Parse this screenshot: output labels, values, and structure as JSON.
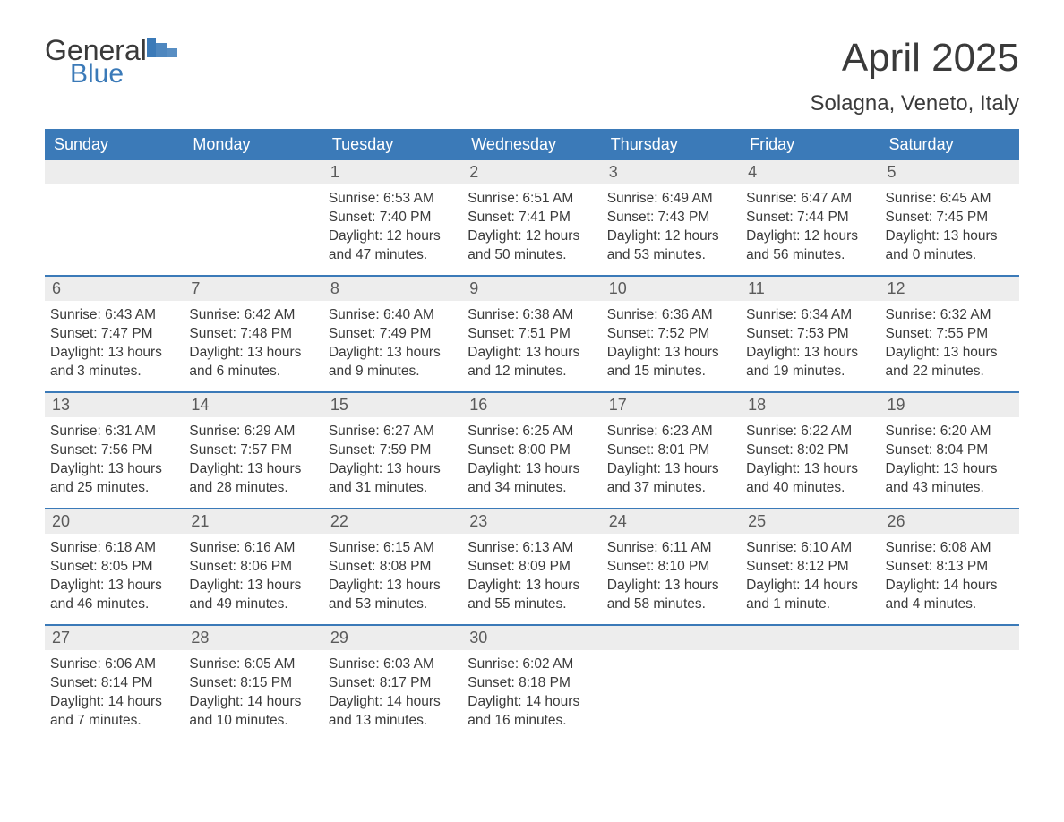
{
  "brand": {
    "word1": "General",
    "word2": "Blue"
  },
  "colors": {
    "brand_blue": "#3b7ab8",
    "header_bg": "#3b7ab8",
    "header_text": "#ffffff",
    "daynum_bg": "#ededed",
    "text": "#3a3a3a",
    "page_bg": "#ffffff"
  },
  "title": "April 2025",
  "location": "Solagna, Veneto, Italy",
  "dow": [
    "Sunday",
    "Monday",
    "Tuesday",
    "Wednesday",
    "Thursday",
    "Friday",
    "Saturday"
  ],
  "weeks": [
    [
      {
        "n": "",
        "sr": "",
        "ss": "",
        "dl": ""
      },
      {
        "n": "",
        "sr": "",
        "ss": "",
        "dl": ""
      },
      {
        "n": "1",
        "sr": "Sunrise: 6:53 AM",
        "ss": "Sunset: 7:40 PM",
        "dl": "Daylight: 12 hours and 47 minutes."
      },
      {
        "n": "2",
        "sr": "Sunrise: 6:51 AM",
        "ss": "Sunset: 7:41 PM",
        "dl": "Daylight: 12 hours and 50 minutes."
      },
      {
        "n": "3",
        "sr": "Sunrise: 6:49 AM",
        "ss": "Sunset: 7:43 PM",
        "dl": "Daylight: 12 hours and 53 minutes."
      },
      {
        "n": "4",
        "sr": "Sunrise: 6:47 AM",
        "ss": "Sunset: 7:44 PM",
        "dl": "Daylight: 12 hours and 56 minutes."
      },
      {
        "n": "5",
        "sr": "Sunrise: 6:45 AM",
        "ss": "Sunset: 7:45 PM",
        "dl": "Daylight: 13 hours and 0 minutes."
      }
    ],
    [
      {
        "n": "6",
        "sr": "Sunrise: 6:43 AM",
        "ss": "Sunset: 7:47 PM",
        "dl": "Daylight: 13 hours and 3 minutes."
      },
      {
        "n": "7",
        "sr": "Sunrise: 6:42 AM",
        "ss": "Sunset: 7:48 PM",
        "dl": "Daylight: 13 hours and 6 minutes."
      },
      {
        "n": "8",
        "sr": "Sunrise: 6:40 AM",
        "ss": "Sunset: 7:49 PM",
        "dl": "Daylight: 13 hours and 9 minutes."
      },
      {
        "n": "9",
        "sr": "Sunrise: 6:38 AM",
        "ss": "Sunset: 7:51 PM",
        "dl": "Daylight: 13 hours and 12 minutes."
      },
      {
        "n": "10",
        "sr": "Sunrise: 6:36 AM",
        "ss": "Sunset: 7:52 PM",
        "dl": "Daylight: 13 hours and 15 minutes."
      },
      {
        "n": "11",
        "sr": "Sunrise: 6:34 AM",
        "ss": "Sunset: 7:53 PM",
        "dl": "Daylight: 13 hours and 19 minutes."
      },
      {
        "n": "12",
        "sr": "Sunrise: 6:32 AM",
        "ss": "Sunset: 7:55 PM",
        "dl": "Daylight: 13 hours and 22 minutes."
      }
    ],
    [
      {
        "n": "13",
        "sr": "Sunrise: 6:31 AM",
        "ss": "Sunset: 7:56 PM",
        "dl": "Daylight: 13 hours and 25 minutes."
      },
      {
        "n": "14",
        "sr": "Sunrise: 6:29 AM",
        "ss": "Sunset: 7:57 PM",
        "dl": "Daylight: 13 hours and 28 minutes."
      },
      {
        "n": "15",
        "sr": "Sunrise: 6:27 AM",
        "ss": "Sunset: 7:59 PM",
        "dl": "Daylight: 13 hours and 31 minutes."
      },
      {
        "n": "16",
        "sr": "Sunrise: 6:25 AM",
        "ss": "Sunset: 8:00 PM",
        "dl": "Daylight: 13 hours and 34 minutes."
      },
      {
        "n": "17",
        "sr": "Sunrise: 6:23 AM",
        "ss": "Sunset: 8:01 PM",
        "dl": "Daylight: 13 hours and 37 minutes."
      },
      {
        "n": "18",
        "sr": "Sunrise: 6:22 AM",
        "ss": "Sunset: 8:02 PM",
        "dl": "Daylight: 13 hours and 40 minutes."
      },
      {
        "n": "19",
        "sr": "Sunrise: 6:20 AM",
        "ss": "Sunset: 8:04 PM",
        "dl": "Daylight: 13 hours and 43 minutes."
      }
    ],
    [
      {
        "n": "20",
        "sr": "Sunrise: 6:18 AM",
        "ss": "Sunset: 8:05 PM",
        "dl": "Daylight: 13 hours and 46 minutes."
      },
      {
        "n": "21",
        "sr": "Sunrise: 6:16 AM",
        "ss": "Sunset: 8:06 PM",
        "dl": "Daylight: 13 hours and 49 minutes."
      },
      {
        "n": "22",
        "sr": "Sunrise: 6:15 AM",
        "ss": "Sunset: 8:08 PM",
        "dl": "Daylight: 13 hours and 53 minutes."
      },
      {
        "n": "23",
        "sr": "Sunrise: 6:13 AM",
        "ss": "Sunset: 8:09 PM",
        "dl": "Daylight: 13 hours and 55 minutes."
      },
      {
        "n": "24",
        "sr": "Sunrise: 6:11 AM",
        "ss": "Sunset: 8:10 PM",
        "dl": "Daylight: 13 hours and 58 minutes."
      },
      {
        "n": "25",
        "sr": "Sunrise: 6:10 AM",
        "ss": "Sunset: 8:12 PM",
        "dl": "Daylight: 14 hours and 1 minute."
      },
      {
        "n": "26",
        "sr": "Sunrise: 6:08 AM",
        "ss": "Sunset: 8:13 PM",
        "dl": "Daylight: 14 hours and 4 minutes."
      }
    ],
    [
      {
        "n": "27",
        "sr": "Sunrise: 6:06 AM",
        "ss": "Sunset: 8:14 PM",
        "dl": "Daylight: 14 hours and 7 minutes."
      },
      {
        "n": "28",
        "sr": "Sunrise: 6:05 AM",
        "ss": "Sunset: 8:15 PM",
        "dl": "Daylight: 14 hours and 10 minutes."
      },
      {
        "n": "29",
        "sr": "Sunrise: 6:03 AM",
        "ss": "Sunset: 8:17 PM",
        "dl": "Daylight: 14 hours and 13 minutes."
      },
      {
        "n": "30",
        "sr": "Sunrise: 6:02 AM",
        "ss": "Sunset: 8:18 PM",
        "dl": "Daylight: 14 hours and 16 minutes."
      },
      {
        "n": "",
        "sr": "",
        "ss": "",
        "dl": ""
      },
      {
        "n": "",
        "sr": "",
        "ss": "",
        "dl": ""
      },
      {
        "n": "",
        "sr": "",
        "ss": "",
        "dl": ""
      }
    ]
  ]
}
